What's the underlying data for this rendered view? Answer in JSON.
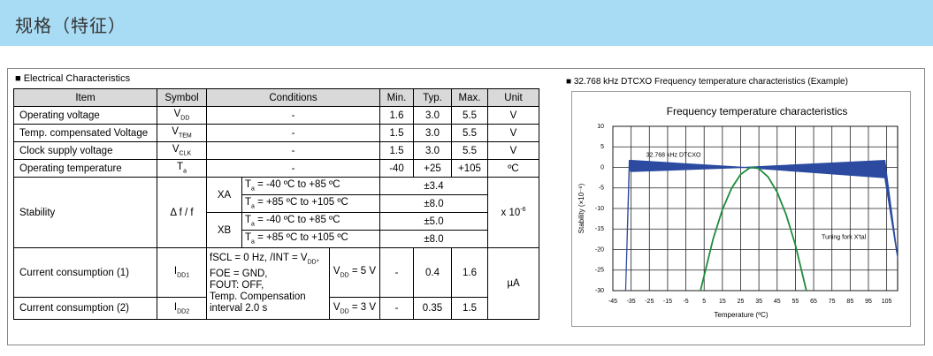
{
  "header": {
    "title": "规格（特征）"
  },
  "table": {
    "caption": "■ Electrical Characteristics",
    "columns": [
      "Item",
      "Symbol",
      "Conditions",
      "Min.",
      "Typ.",
      "Max.",
      "Unit"
    ],
    "rows": [
      {
        "item": "Operating voltage",
        "symbol": [
          "V",
          {
            "sub": "DD"
          }
        ],
        "conditions": "-",
        "min": "1.6",
        "typ": "3.0",
        "max": "5.5",
        "unit": "V"
      },
      {
        "item": "Temp. compensated Voltage",
        "symbol": [
          "V",
          {
            "sub": "TEM"
          }
        ],
        "conditions": "-",
        "min": "1.5",
        "typ": "3.0",
        "max": "5.5",
        "unit": "V"
      },
      {
        "item": "Clock supply voltage",
        "symbol": [
          "V",
          {
            "sub": "CLK"
          }
        ],
        "conditions": "-",
        "min": "1.5",
        "typ": "3.0",
        "max": "5.5",
        "unit": "V"
      },
      {
        "item": "Operating temperature",
        "symbol": [
          "T",
          {
            "sub": "a"
          }
        ],
        "conditions": "-",
        "min": "-40",
        "typ": "+25",
        "max": "+105",
        "unit": "ºC"
      }
    ],
    "stability": {
      "item": "Stability",
      "symbol": "Δ f / f",
      "unit": [
        "x 10",
        {
          "sup": "-6"
        }
      ],
      "groups": [
        {
          "name": "XA",
          "rows": [
            [
              [
                "T",
                {
                  "sub": "a"
                },
                " = -40 ºC to +85 ºC"
              ],
              "±3.4"
            ],
            [
              [
                "T",
                {
                  "sub": "a"
                },
                " = +85 ºC to +105 ºC"
              ],
              "±8.0"
            ]
          ]
        },
        {
          "name": "XB",
          "rows": [
            [
              [
                "T",
                {
                  "sub": "a"
                },
                " = -40 ºC to +85 ºC"
              ],
              "±5.0"
            ],
            [
              [
                "T",
                {
                  "sub": "a"
                },
                " = +85 ºC to +105 ºC"
              ],
              "±8.0"
            ]
          ]
        }
      ]
    },
    "current": {
      "conditions": [
        [
          "fSCL = 0 Hz, /INT = V",
          {
            "sub": "DD"
          },
          ","
        ],
        [
          "FOE = GND,"
        ],
        [
          "FOUT: OFF,"
        ],
        [
          "Temp. Compensation"
        ],
        [
          "interval 2.0 s"
        ]
      ],
      "unit": "µA",
      "rows": [
        {
          "item": "Current consumption (1)",
          "symbol": [
            "I",
            {
              "sub": "DD1"
            }
          ],
          "supply": [
            "V",
            {
              "sub": "DD"
            },
            " = 5 V"
          ],
          "min": "-",
          "typ": "0.4",
          "max": "1.6"
        },
        {
          "item": "Current consumption (2)",
          "symbol": [
            "I",
            {
              "sub": "DD2"
            }
          ],
          "supply": [
            "V",
            {
              "sub": "DD"
            },
            " = 3 V"
          ],
          "min": "-",
          "typ": "0.35",
          "max": "1.5"
        }
      ]
    }
  },
  "figure": {
    "caption": "■ 32.768 kHz DTCXO Frequency temperature characteristics (Example)"
  },
  "chart_data": {
    "type": "line",
    "title": "Frequency temperature characteristics",
    "x_label": "Temperature (ºC)",
    "y_label": "Stability (×10⁻⁶)",
    "xlim": [
      -45,
      111
    ],
    "ylim": [
      -30,
      10
    ],
    "xticks": [
      -45,
      -35,
      -25,
      -15,
      -5,
      5,
      15,
      25,
      35,
      45,
      55,
      65,
      75,
      85,
      95,
      105
    ],
    "yticks": [
      -30,
      -25,
      -20,
      -15,
      -10,
      -5,
      0,
      5,
      10
    ],
    "grid": true,
    "series": [
      {
        "name": "32.768 kHz DTCXO",
        "color": "#2b4aa0",
        "x": [
          -38,
          -36,
          -35,
          27,
          104,
          111
        ],
        "values": [
          -30,
          1.7,
          1.7,
          0,
          1.7,
          -22
        ],
        "lower": [
          -30,
          -0.5,
          -1,
          0,
          -2.5,
          -22
        ]
      },
      {
        "name": "Tuning fork X'tal",
        "color": "#1f8c3c",
        "x": [
          3,
          10,
          15,
          20,
          25,
          30,
          32,
          35,
          40,
          45,
          50,
          55,
          61
        ],
        "values": [
          -30,
          -17.3,
          -10.3,
          -5.1,
          -1.7,
          -0.1,
          0,
          -0.3,
          -2.3,
          -6,
          -11.6,
          -18.9,
          -30
        ]
      }
    ]
  }
}
